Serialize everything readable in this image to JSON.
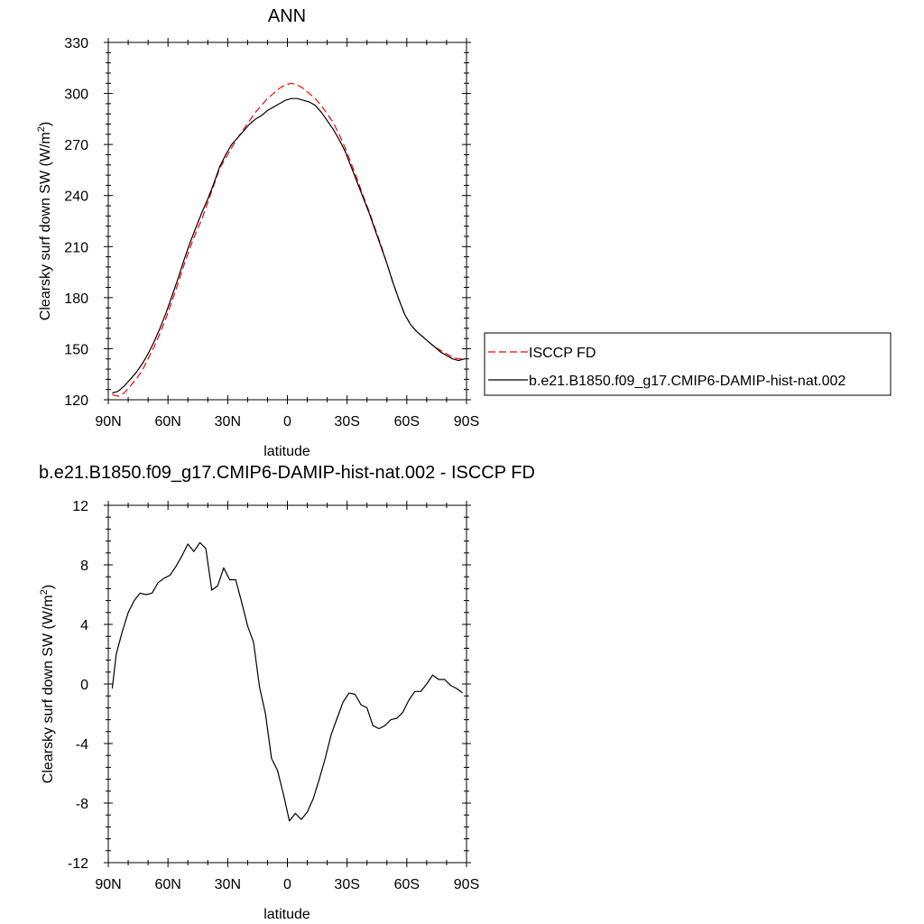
{
  "chart_data": [
    {
      "type": "line",
      "title": "ANN",
      "xlabel": "latitude",
      "ylabel": "Clearsky surf down SW (W/m²)",
      "ylabel_main": "Clearsky surf down SW (W/m",
      "ylabel_sup": "2",
      "ylabel_close": ")",
      "xlim": [
        -90,
        90
      ],
      "ylim": [
        120,
        330
      ],
      "xticks": [
        {
          "value": -90,
          "label": "90N"
        },
        {
          "value": -60,
          "label": "60N"
        },
        {
          "value": -30,
          "label": "30N"
        },
        {
          "value": 0,
          "label": "0"
        },
        {
          "value": 30,
          "label": "30S"
        },
        {
          "value": 60,
          "label": "60S"
        },
        {
          "value": 90,
          "label": "90S"
        }
      ],
      "yticks": [
        120,
        150,
        180,
        210,
        240,
        270,
        300,
        330
      ],
      "grid": false,
      "legend_position": "right",
      "series": [
        {
          "name": "ISCCP FD",
          "color": "#ff0000",
          "dash": "dashed",
          "x": [
            -88,
            -85,
            -82,
            -79,
            -76,
            -73,
            -70,
            -67,
            -64,
            -61,
            -58,
            -55,
            -52,
            -49,
            -46,
            -43,
            -40,
            -37,
            -34,
            -31,
            -28,
            -25,
            -22,
            -19,
            -16,
            -13,
            -10,
            -7,
            -4,
            -1,
            2,
            5,
            8,
            11,
            14,
            17,
            20,
            23,
            26,
            29,
            32,
            35,
            38,
            41,
            44,
            47,
            50,
            53,
            56,
            59,
            62,
            65,
            68,
            71,
            74,
            77,
            80,
            83,
            86,
            89
          ],
          "y": [
            123,
            122,
            124,
            128,
            132,
            137,
            144,
            151,
            159,
            168,
            178,
            188,
            199,
            209,
            218,
            226,
            236,
            246,
            256,
            262,
            268,
            274,
            279,
            284,
            289,
            293,
            297,
            300,
            303,
            305,
            306,
            305,
            303,
            300,
            297,
            293,
            288,
            283,
            276,
            268,
            259,
            250,
            240,
            231,
            221,
            211,
            200,
            189,
            179,
            170,
            164,
            160,
            157,
            154,
            151,
            149,
            147,
            145,
            144,
            144
          ]
        },
        {
          "name": "b.e21.B1850.f09_g17.CMIP6-DAMIP-hist-nat.002",
          "color": "#000000",
          "dash": "solid",
          "x": [
            -88,
            -85,
            -82,
            -79,
            -76,
            -73,
            -70,
            -67,
            -64,
            -61,
            -58,
            -55,
            -52,
            -49,
            -46,
            -43,
            -40,
            -37,
            -34,
            -31,
            -28,
            -25,
            -22,
            -19,
            -16,
            -13,
            -10,
            -7,
            -4,
            -1,
            2,
            5,
            8,
            11,
            14,
            17,
            20,
            23,
            26,
            29,
            32,
            35,
            38,
            41,
            44,
            47,
            50,
            53,
            56,
            59,
            62,
            65,
            68,
            71,
            74,
            77,
            80,
            83,
            86,
            89
          ],
          "y": [
            124,
            125,
            128,
            132,
            136,
            141,
            147,
            154,
            162,
            171,
            181,
            191,
            202,
            212,
            221,
            230,
            238,
            247,
            257,
            264,
            270,
            274,
            278,
            282,
            285,
            287,
            290,
            292,
            294,
            296,
            297,
            297,
            296,
            295,
            293,
            289,
            284,
            279,
            273,
            266,
            257,
            248,
            239,
            230,
            220,
            210,
            200,
            189,
            179,
            170,
            164,
            160,
            157,
            154,
            151,
            148,
            146,
            144,
            143,
            144
          ]
        }
      ]
    },
    {
      "type": "line",
      "title": "b.e21.B1850.f09_g17.CMIP6-DAMIP-hist-nat.002 - ISCCP FD",
      "xlabel": "latitude",
      "ylabel": "Clearsky surf down SW (W/m²)",
      "ylabel_main": "Clearsky surf down SW (W/m",
      "ylabel_sup": "2",
      "ylabel_close": ")",
      "xlim": [
        -90,
        90
      ],
      "ylim": [
        -12,
        12
      ],
      "xticks": [
        {
          "value": -90,
          "label": "90N"
        },
        {
          "value": -60,
          "label": "60N"
        },
        {
          "value": -30,
          "label": "30N"
        },
        {
          "value": 0,
          "label": "0"
        },
        {
          "value": 30,
          "label": "30S"
        },
        {
          "value": 60,
          "label": "60S"
        },
        {
          "value": 90,
          "label": "90S"
        }
      ],
      "yticks": [
        -12,
        -8,
        -4,
        0,
        4,
        8,
        12
      ],
      "grid": false,
      "series": [
        {
          "color": "#000000",
          "dash": "solid",
          "x": [
            -88,
            -86,
            -83,
            -80,
            -77,
            -74,
            -71,
            -68,
            -65,
            -62,
            -59,
            -56,
            -53,
            -50,
            -47,
            -44,
            -41,
            -38,
            -35,
            -32,
            -29,
            -26,
            -23,
            -20,
            -17,
            -14,
            -11,
            -8,
            -5,
            -2,
            1,
            4,
            7,
            10,
            13,
            16,
            19,
            22,
            25,
            28,
            31,
            34,
            37,
            40,
            43,
            46,
            49,
            52,
            55,
            58,
            61,
            64,
            67,
            70,
            73,
            76,
            79,
            82,
            85,
            88
          ],
          "y": [
            -0.3,
            2.0,
            3.5,
            4.8,
            5.6,
            6.1,
            6.0,
            6.1,
            6.8,
            7.1,
            7.3,
            7.9,
            8.6,
            9.4,
            8.9,
            9.5,
            9.1,
            6.3,
            6.6,
            7.8,
            7.0,
            7.0,
            5.5,
            3.9,
            2.8,
            -0.2,
            -2.0,
            -5.0,
            -5.8,
            -7.4,
            -9.2,
            -8.7,
            -9.1,
            -8.6,
            -7.7,
            -6.4,
            -5.0,
            -3.4,
            -2.3,
            -1.2,
            -0.6,
            -0.7,
            -1.4,
            -1.6,
            -2.8,
            -3.0,
            -2.8,
            -2.4,
            -2.3,
            -1.9,
            -1.1,
            -0.5,
            -0.5,
            0.0,
            0.6,
            0.3,
            0.3,
            -0.1,
            -0.3,
            -0.6
          ]
        }
      ]
    }
  ]
}
